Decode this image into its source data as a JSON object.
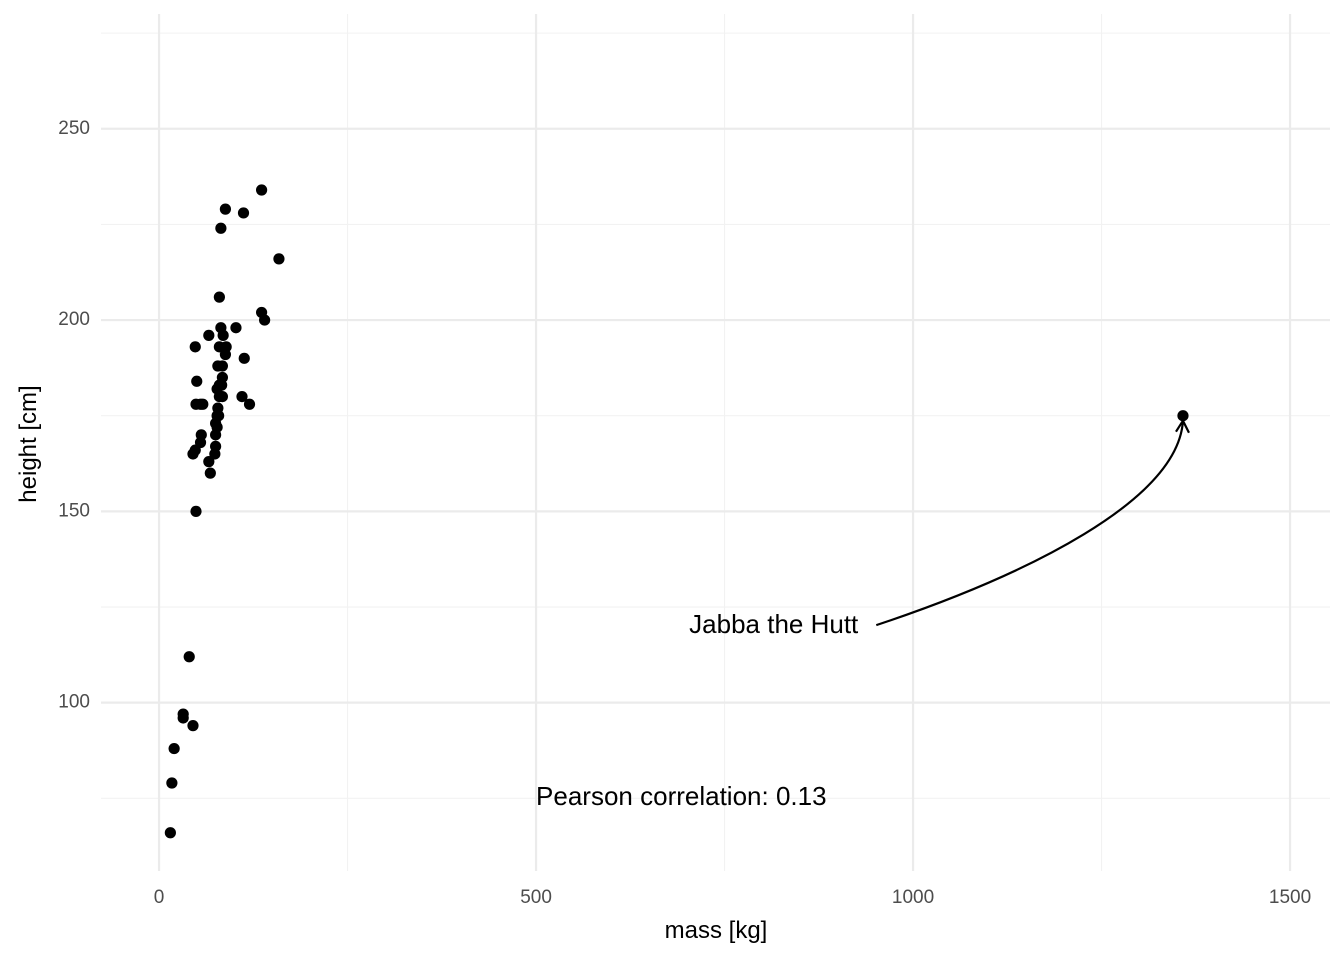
{
  "chart_data": {
    "type": "scatter",
    "title": "",
    "xlabel": "mass [kg]",
    "ylabel": "height [cm]",
    "xlim": [
      -77,
      1553
    ],
    "ylim": [
      56,
      280
    ],
    "x_ticks": [
      0,
      500,
      1000,
      1500
    ],
    "x_tick_labels": [
      "0",
      "500",
      "1000",
      "1500"
    ],
    "y_ticks": [
      100,
      150,
      200,
      250
    ],
    "y_tick_labels": [
      "100",
      "150",
      "200",
      "250"
    ],
    "grid": true,
    "legend": "none",
    "point_color": "#000000",
    "points": [
      {
        "x": 15,
        "y": 66
      },
      {
        "x": 17,
        "y": 79
      },
      {
        "x": 20,
        "y": 88
      },
      {
        "x": 32,
        "y": 96
      },
      {
        "x": 32,
        "y": 97
      },
      {
        "x": 45,
        "y": 94
      },
      {
        "x": 40,
        "y": 112
      },
      {
        "x": 49,
        "y": 150
      },
      {
        "x": 45,
        "y": 165
      },
      {
        "x": 48,
        "y": 166
      },
      {
        "x": 55,
        "y": 168
      },
      {
        "x": 56,
        "y": 170
      },
      {
        "x": 49,
        "y": 178
      },
      {
        "x": 55,
        "y": 178
      },
      {
        "x": 58,
        "y": 178
      },
      {
        "x": 50,
        "y": 184
      },
      {
        "x": 48,
        "y": 193
      },
      {
        "x": 66,
        "y": 163
      },
      {
        "x": 68,
        "y": 160
      },
      {
        "x": 66,
        "y": 196
      },
      {
        "x": 74,
        "y": 165
      },
      {
        "x": 75,
        "y": 167
      },
      {
        "x": 75,
        "y": 170
      },
      {
        "x": 77,
        "y": 172
      },
      {
        "x": 75,
        "y": 173
      },
      {
        "x": 77,
        "y": 175
      },
      {
        "x": 79,
        "y": 175
      },
      {
        "x": 78,
        "y": 177
      },
      {
        "x": 80,
        "y": 180
      },
      {
        "x": 84,
        "y": 180
      },
      {
        "x": 77,
        "y": 182
      },
      {
        "x": 80,
        "y": 183
      },
      {
        "x": 83,
        "y": 183
      },
      {
        "x": 84,
        "y": 185
      },
      {
        "x": 78,
        "y": 188
      },
      {
        "x": 84,
        "y": 188
      },
      {
        "x": 80,
        "y": 193
      },
      {
        "x": 88,
        "y": 191
      },
      {
        "x": 89,
        "y": 193
      },
      {
        "x": 85,
        "y": 196
      },
      {
        "x": 82,
        "y": 198
      },
      {
        "x": 80,
        "y": 206
      },
      {
        "x": 82,
        "y": 224
      },
      {
        "x": 88,
        "y": 229
      },
      {
        "x": 102,
        "y": 198
      },
      {
        "x": 110,
        "y": 180
      },
      {
        "x": 113,
        "y": 190
      },
      {
        "x": 120,
        "y": 178
      },
      {
        "x": 112,
        "y": 228
      },
      {
        "x": 136,
        "y": 202
      },
      {
        "x": 140,
        "y": 200
      },
      {
        "x": 136,
        "y": 234
      },
      {
        "x": 159,
        "y": 216
      },
      {
        "x": 1358,
        "y": 175
      }
    ],
    "annotations": [
      {
        "text": "Jabba the Hutt",
        "x": 1060,
        "y": 120,
        "arrow_to": {
          "x": 1358,
          "y": 175
        }
      },
      {
        "text": "Pearson correlation: 0.13",
        "x": 500,
        "y": 75
      }
    ]
  }
}
